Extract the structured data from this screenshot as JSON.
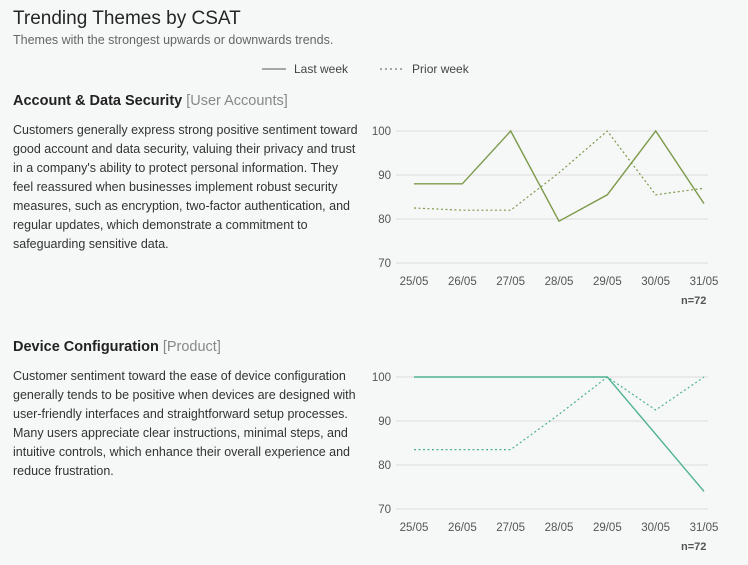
{
  "header": {
    "title": "Trending Themes by CSAT",
    "subtitle": "Themes with the strongest upwards or downwards trends."
  },
  "legend": {
    "last_week": "Last week",
    "prior_week": "Prior week"
  },
  "sections": [
    {
      "title": "Account & Data Security",
      "tag": "[User Accounts]",
      "description": "Customers generally express strong positive sentiment toward good account and data security, valuing their privacy and trust in a company's ability to protect personal information. They feel reassured when businesses implement robust security measures, such as encryption, two-factor authentication, and regular updates, which demonstrate a commitment to safeguarding sensitive data.",
      "n_label": "n=72",
      "color": "#7d9a4a"
    },
    {
      "title": "Device Configuration",
      "tag": "[Product]",
      "description": "Customer sentiment toward the ease of device configuration generally tends to be positive when devices are designed with user-friendly interfaces and straightforward setup processes. Many users appreciate clear instructions, minimal steps, and intuitive controls, which enhance their overall experience and reduce frustration.",
      "n_label": "n=72",
      "color": "#4fb38e"
    }
  ],
  "chart_data": [
    {
      "type": "line",
      "categories": [
        "25/05",
        "26/05",
        "27/05",
        "28/05",
        "29/05",
        "30/05",
        "31/05"
      ],
      "ylim": [
        70,
        100
      ],
      "yticks": [
        70,
        80,
        90,
        100
      ],
      "grid": true,
      "series": [
        {
          "name": "Last week",
          "style": "solid",
          "color": "#7d9a4a",
          "values": [
            88,
            88,
            100,
            79.5,
            85.5,
            100,
            83.5
          ]
        },
        {
          "name": "Prior week",
          "style": "dashed",
          "color": "#7d9a4a",
          "values": [
            82.5,
            82,
            82,
            90.5,
            100,
            85.5,
            87
          ]
        }
      ]
    },
    {
      "type": "line",
      "categories": [
        "25/05",
        "26/05",
        "27/05",
        "28/05",
        "29/05",
        "30/05",
        "31/05"
      ],
      "ylim": [
        70,
        100
      ],
      "yticks": [
        70,
        80,
        90,
        100
      ],
      "grid": true,
      "series": [
        {
          "name": "Last week",
          "style": "solid",
          "color": "#4fb38e",
          "values": [
            100,
            100,
            100,
            100,
            100,
            87,
            74
          ]
        },
        {
          "name": "Prior week",
          "style": "dashed",
          "color": "#4fb38e",
          "values": [
            83.5,
            83.5,
            83.5,
            91.5,
            100,
            92.5,
            100
          ]
        }
      ]
    }
  ]
}
